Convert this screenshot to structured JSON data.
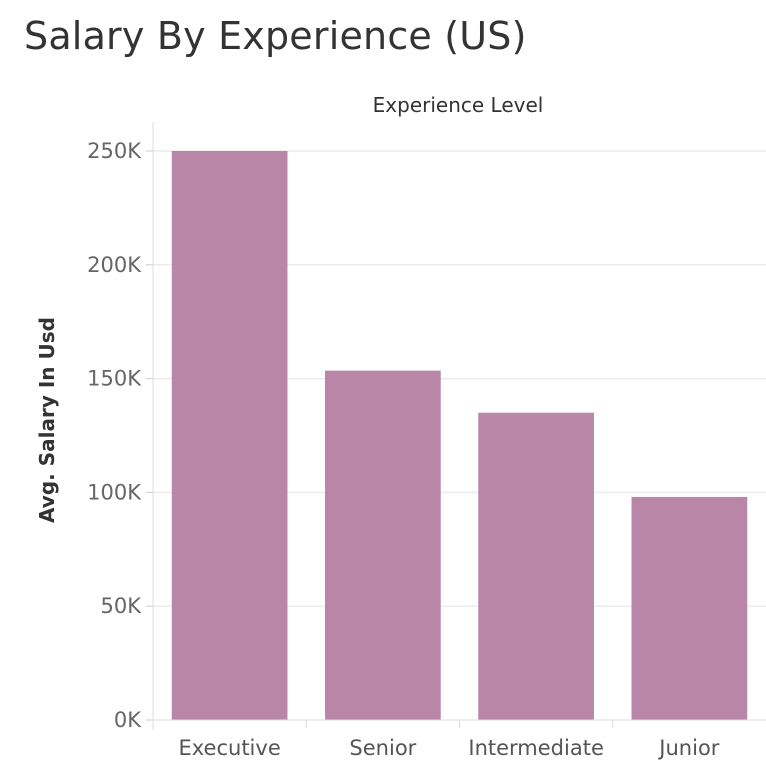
{
  "chart_data": {
    "type": "bar",
    "title": "Salary By Experience (US)",
    "column_header": "Experience Level",
    "ylabel": "Avg. Salary In Usd",
    "categories": [
      "Executive",
      "Senior",
      "Intermediate",
      "Junior"
    ],
    "values": [
      250000,
      153500,
      135000,
      98000
    ],
    "ylim": [
      0,
      250000
    ],
    "yticks": [
      0,
      50000,
      100000,
      150000,
      200000,
      250000
    ],
    "ytick_labels": [
      "0K",
      "50K",
      "100K",
      "150K",
      "200K",
      "250K"
    ],
    "bar_color": "#B986A7",
    "gridline_color": "#ECECEC",
    "grid": true,
    "legend": "none"
  }
}
